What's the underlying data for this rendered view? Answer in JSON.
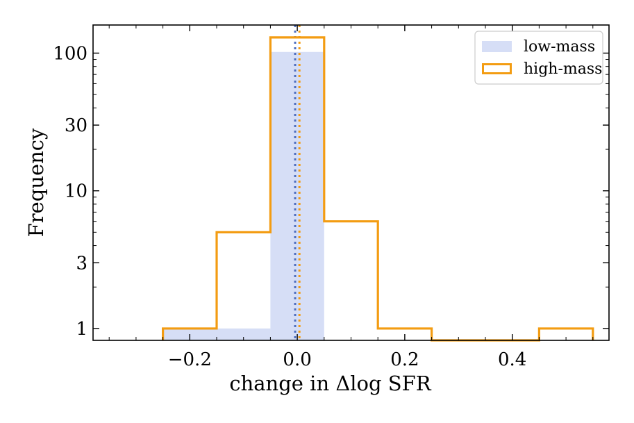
{
  "chart_data": {
    "type": "histogram",
    "xlabel": "change in Δlog SFR",
    "ylabel": "Frequency",
    "xlim": [
      -0.38,
      0.58
    ],
    "ylim": [
      0.82,
      160
    ],
    "yscale": "log",
    "x_ticks": [
      -0.2,
      0.0,
      0.2,
      0.4
    ],
    "x_tick_labels": [
      "−0.2",
      "0.0",
      "0.2",
      "0.4"
    ],
    "y_ticks": [
      1,
      3,
      10,
      30,
      100
    ],
    "y_tick_labels": [
      "1",
      "3",
      "10",
      "30",
      "100"
    ],
    "bin_edges": [
      -0.25,
      -0.15,
      -0.05,
      0.05,
      0.15,
      0.25,
      0.35,
      0.45,
      0.55
    ],
    "series": [
      {
        "name": "low-mass",
        "style": "filled",
        "color": "#d6def6",
        "counts": [
          1,
          1,
          102,
          0,
          0,
          0,
          0,
          0
        ],
        "median_line_x": -0.004,
        "median_line_color": "#4f6fbf"
      },
      {
        "name": "high-mass",
        "style": "step",
        "color": "#f39c12",
        "counts": [
          1,
          5,
          130,
          6,
          1,
          0,
          0,
          1
        ],
        "median_line_x": 0.004,
        "median_line_color": "#f39c12"
      }
    ],
    "legend": {
      "position": "top-right",
      "entries": [
        "low-mass",
        "high-mass"
      ]
    }
  }
}
